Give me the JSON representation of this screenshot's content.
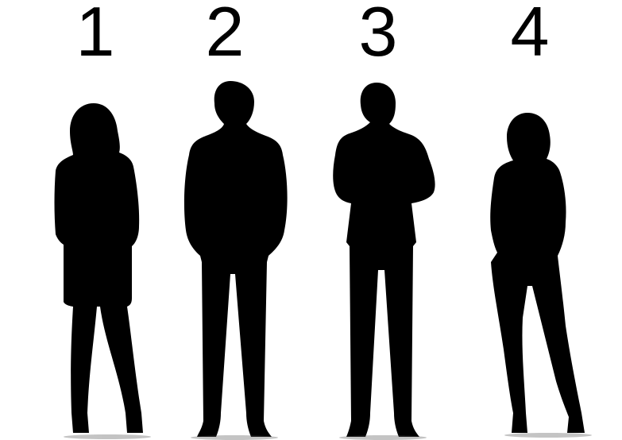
{
  "labels": {
    "one": "1",
    "two": "2",
    "three": "3",
    "four": "4"
  },
  "figures": [
    {
      "id": 1,
      "kind": "woman-silhouette-icon"
    },
    {
      "id": 2,
      "kind": "man-silhouette-icon"
    },
    {
      "id": 3,
      "kind": "man-silhouette-icon"
    },
    {
      "id": 4,
      "kind": "woman-silhouette-icon"
    }
  ],
  "colors": {
    "silhouette": "#000000",
    "background": "#ffffff"
  }
}
